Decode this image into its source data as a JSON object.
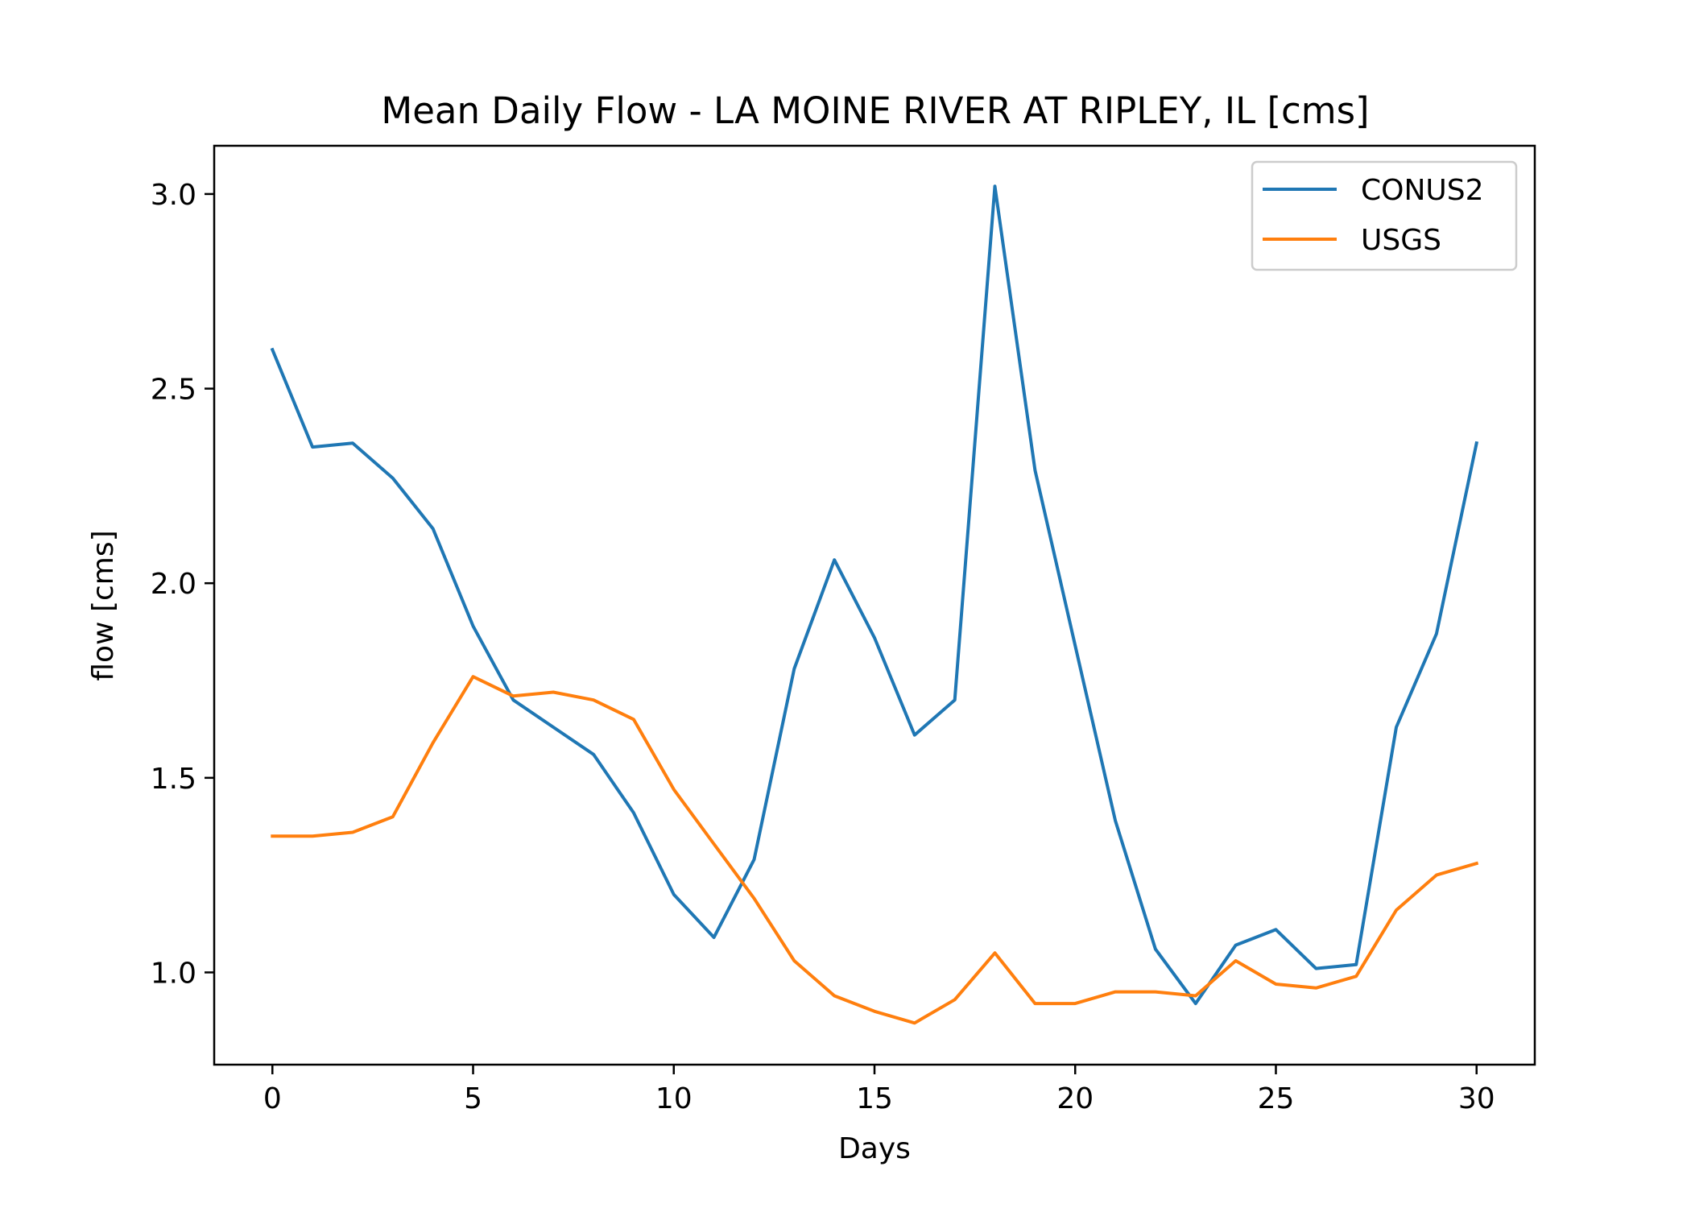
{
  "chart_data": {
    "type": "line",
    "title": "Mean Daily Flow - LA MOINE RIVER AT RIPLEY, IL [cms]",
    "xlabel": "Days",
    "ylabel": "flow [cms]",
    "xlim": [
      -1.45,
      31.45
    ],
    "ylim": [
      0.763,
      3.124
    ],
    "xticks": [
      0,
      5,
      10,
      15,
      20,
      25,
      30
    ],
    "yticks": [
      1.0,
      1.5,
      2.0,
      2.5,
      3.0
    ],
    "grid": false,
    "legend_position": "upper right",
    "x": [
      0,
      1,
      2,
      3,
      4,
      5,
      6,
      7,
      8,
      9,
      10,
      11,
      12,
      13,
      14,
      15,
      16,
      17,
      18,
      19,
      20,
      21,
      22,
      23,
      24,
      25,
      26,
      27,
      28,
      29,
      30
    ],
    "series": [
      {
        "name": "CONUS2",
        "color": "#1f77b4",
        "values": [
          2.6,
          2.35,
          2.36,
          2.27,
          2.14,
          1.89,
          1.7,
          1.63,
          1.56,
          1.41,
          1.2,
          1.09,
          1.29,
          1.78,
          2.06,
          1.86,
          1.61,
          1.7,
          3.02,
          2.29,
          1.84,
          1.39,
          1.06,
          0.92,
          1.07,
          1.11,
          1.01,
          1.02,
          1.63,
          1.87,
          2.36
        ]
      },
      {
        "name": "USGS",
        "color": "#ff7f0e",
        "values": [
          1.35,
          1.35,
          1.36,
          1.4,
          1.59,
          1.76,
          1.71,
          1.72,
          1.7,
          1.65,
          1.47,
          1.33,
          1.19,
          1.03,
          0.94,
          0.9,
          0.87,
          0.93,
          1.05,
          0.92,
          0.92,
          0.95,
          0.95,
          0.94,
          1.03,
          0.97,
          0.96,
          0.99,
          1.16,
          1.25,
          1.28
        ]
      }
    ]
  }
}
